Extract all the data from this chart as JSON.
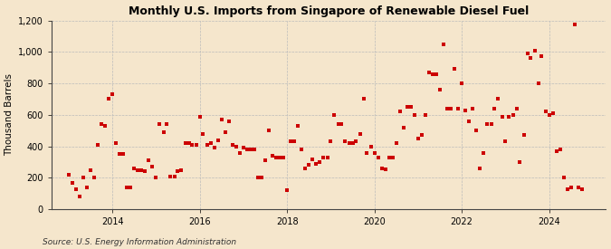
{
  "title": "Monthly U.S. Imports from Singapore of Renewable Diesel Fuel",
  "ylabel": "Thousand Barrels",
  "source": "Source: U.S. Energy Information Administration",
  "background_color": "#f5e6cc",
  "plot_bg_color": "#f5e6cc",
  "marker_color": "#cc0000",
  "marker_size": 3.5,
  "ylim": [
    0,
    1200
  ],
  "yticks": [
    0,
    200,
    400,
    600,
    800,
    1000,
    1200
  ],
  "ytick_labels": [
    "0",
    "200",
    "400",
    "600",
    "800",
    "1,000",
    "1,200"
  ],
  "xtick_years": [
    2014,
    2016,
    2018,
    2020,
    2022,
    2024
  ],
  "xlim": [
    2012.6,
    2025.3
  ],
  "data": [
    [
      2013.0,
      220
    ],
    [
      2013.08,
      170
    ],
    [
      2013.17,
      130
    ],
    [
      2013.25,
      80
    ],
    [
      2013.33,
      200
    ],
    [
      2013.42,
      140
    ],
    [
      2013.5,
      250
    ],
    [
      2013.58,
      200
    ],
    [
      2013.67,
      410
    ],
    [
      2013.75,
      540
    ],
    [
      2013.83,
      530
    ],
    [
      2013.92,
      700
    ],
    [
      2014.0,
      730
    ],
    [
      2014.08,
      420
    ],
    [
      2014.17,
      350
    ],
    [
      2014.25,
      350
    ],
    [
      2014.33,
      140
    ],
    [
      2014.42,
      140
    ],
    [
      2014.5,
      260
    ],
    [
      2014.58,
      250
    ],
    [
      2014.67,
      250
    ],
    [
      2014.75,
      240
    ],
    [
      2014.83,
      310
    ],
    [
      2014.92,
      270
    ],
    [
      2015.0,
      200
    ],
    [
      2015.08,
      540
    ],
    [
      2015.17,
      490
    ],
    [
      2015.25,
      540
    ],
    [
      2015.33,
      210
    ],
    [
      2015.42,
      210
    ],
    [
      2015.5,
      240
    ],
    [
      2015.58,
      250
    ],
    [
      2015.67,
      420
    ],
    [
      2015.75,
      420
    ],
    [
      2015.83,
      410
    ],
    [
      2015.92,
      410
    ],
    [
      2016.0,
      590
    ],
    [
      2016.08,
      480
    ],
    [
      2016.17,
      410
    ],
    [
      2016.25,
      420
    ],
    [
      2016.33,
      390
    ],
    [
      2016.42,
      440
    ],
    [
      2016.5,
      570
    ],
    [
      2016.58,
      490
    ],
    [
      2016.67,
      560
    ],
    [
      2016.75,
      410
    ],
    [
      2016.83,
      400
    ],
    [
      2016.92,
      360
    ],
    [
      2017.0,
      390
    ],
    [
      2017.08,
      380
    ],
    [
      2017.17,
      380
    ],
    [
      2017.25,
      380
    ],
    [
      2017.33,
      200
    ],
    [
      2017.42,
      200
    ],
    [
      2017.5,
      310
    ],
    [
      2017.58,
      500
    ],
    [
      2017.67,
      340
    ],
    [
      2017.75,
      330
    ],
    [
      2017.83,
      330
    ],
    [
      2017.92,
      330
    ],
    [
      2018.0,
      120
    ],
    [
      2018.08,
      430
    ],
    [
      2018.17,
      430
    ],
    [
      2018.25,
      530
    ],
    [
      2018.33,
      380
    ],
    [
      2018.42,
      260
    ],
    [
      2018.5,
      280
    ],
    [
      2018.58,
      320
    ],
    [
      2018.67,
      290
    ],
    [
      2018.75,
      300
    ],
    [
      2018.83,
      330
    ],
    [
      2018.92,
      330
    ],
    [
      2019.0,
      430
    ],
    [
      2019.08,
      600
    ],
    [
      2019.17,
      540
    ],
    [
      2019.25,
      540
    ],
    [
      2019.33,
      430
    ],
    [
      2019.42,
      420
    ],
    [
      2019.5,
      420
    ],
    [
      2019.58,
      430
    ],
    [
      2019.67,
      480
    ],
    [
      2019.75,
      700
    ],
    [
      2019.83,
      360
    ],
    [
      2019.92,
      400
    ],
    [
      2020.0,
      360
    ],
    [
      2020.08,
      330
    ],
    [
      2020.17,
      260
    ],
    [
      2020.25,
      255
    ],
    [
      2020.33,
      330
    ],
    [
      2020.42,
      330
    ],
    [
      2020.5,
      420
    ],
    [
      2020.58,
      620
    ],
    [
      2020.67,
      520
    ],
    [
      2020.75,
      650
    ],
    [
      2020.83,
      650
    ],
    [
      2020.92,
      600
    ],
    [
      2021.0,
      450
    ],
    [
      2021.08,
      470
    ],
    [
      2021.17,
      600
    ],
    [
      2021.25,
      870
    ],
    [
      2021.33,
      860
    ],
    [
      2021.42,
      860
    ],
    [
      2021.5,
      760
    ],
    [
      2021.58,
      1050
    ],
    [
      2021.67,
      640
    ],
    [
      2021.75,
      640
    ],
    [
      2021.83,
      890
    ],
    [
      2021.92,
      640
    ],
    [
      2022.0,
      800
    ],
    [
      2022.08,
      630
    ],
    [
      2022.17,
      560
    ],
    [
      2022.25,
      640
    ],
    [
      2022.33,
      500
    ],
    [
      2022.42,
      260
    ],
    [
      2022.5,
      360
    ],
    [
      2022.58,
      540
    ],
    [
      2022.67,
      540
    ],
    [
      2022.75,
      640
    ],
    [
      2022.83,
      700
    ],
    [
      2022.92,
      590
    ],
    [
      2023.0,
      430
    ],
    [
      2023.08,
      590
    ],
    [
      2023.17,
      600
    ],
    [
      2023.25,
      640
    ],
    [
      2023.33,
      300
    ],
    [
      2023.42,
      470
    ],
    [
      2023.5,
      990
    ],
    [
      2023.58,
      960
    ],
    [
      2023.67,
      1010
    ],
    [
      2023.75,
      800
    ],
    [
      2023.83,
      970
    ],
    [
      2023.92,
      620
    ],
    [
      2024.0,
      600
    ],
    [
      2024.08,
      610
    ],
    [
      2024.17,
      370
    ],
    [
      2024.25,
      380
    ],
    [
      2024.33,
      200
    ],
    [
      2024.42,
      130
    ],
    [
      2024.5,
      140
    ],
    [
      2024.58,
      1175
    ],
    [
      2024.67,
      140
    ],
    [
      2024.75,
      130
    ]
  ]
}
